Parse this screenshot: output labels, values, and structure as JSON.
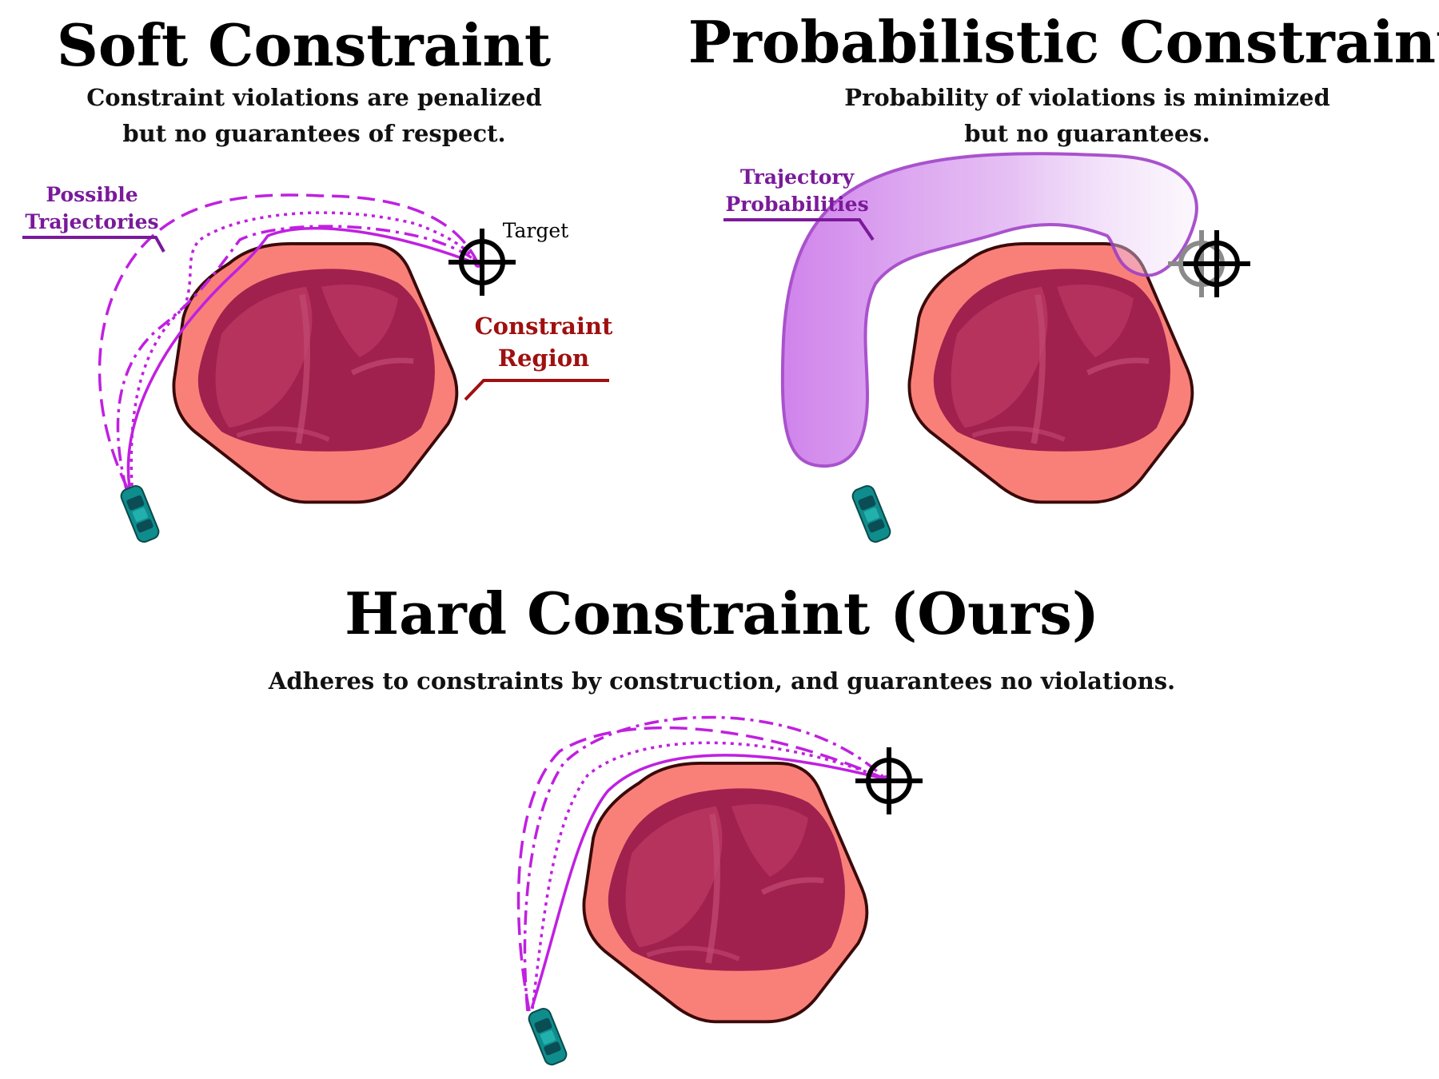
{
  "panels": {
    "soft": {
      "title": "Soft Constraint",
      "subtitle_line1": "Constraint violations are penalized",
      "subtitle_line2": "but no guarantees of respect.",
      "traj_label_line1": "Possible",
      "traj_label_line2": "Trajectories",
      "target_label": "Target",
      "region_label_line1": "Constraint",
      "region_label_line2": "Region"
    },
    "prob": {
      "title": "Probabilistic Constraint",
      "subtitle_line1": "Probability of violations is minimized",
      "subtitle_line2": "but no guarantees.",
      "traj_label_line1": "Trajectory",
      "traj_label_line2": "Probabilities"
    },
    "hard": {
      "title": "Hard Constraint (Ours)",
      "subtitle": "Adheres to constraints by construction, and guarantees no violations."
    }
  },
  "colors": {
    "trajectory": "#c020e0",
    "label_purple": "#7a1a9a",
    "region_label": "#a01010",
    "region_fill": "#f98079",
    "region_stroke": "#3a0a0a",
    "rock_dark": "#a0204e",
    "rock_mid": "#b83560",
    "car": "#0f8c8c",
    "target": "#000000",
    "target_faded": "#8a8a8a"
  }
}
